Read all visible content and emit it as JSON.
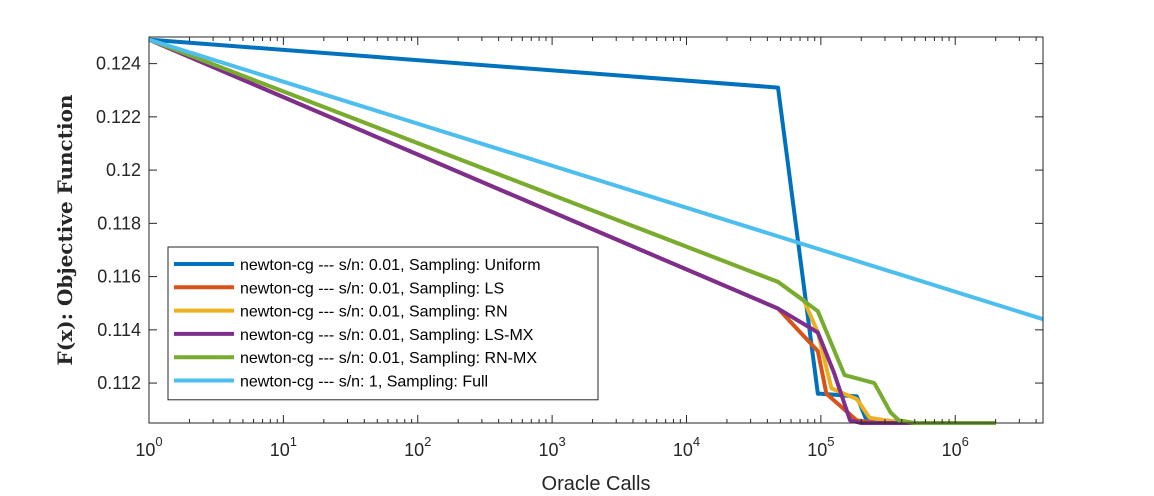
{
  "chart_data": {
    "type": "line",
    "xscale": "log",
    "xlim": [
      1,
      4500000
    ],
    "ylim": [
      0.1105,
      0.125
    ],
    "xlabel": "Oracle Calls",
    "ylabel": "F(x):  Objective Function",
    "x_ticks": [
      {
        "value": 1,
        "base": "10",
        "exp": "0"
      },
      {
        "value": 10,
        "base": "10",
        "exp": "1"
      },
      {
        "value": 100,
        "base": "10",
        "exp": "2"
      },
      {
        "value": 1000,
        "base": "10",
        "exp": "3"
      },
      {
        "value": 10000,
        "base": "10",
        "exp": "4"
      },
      {
        "value": 100000,
        "base": "10",
        "exp": "5"
      },
      {
        "value": 1000000,
        "base": "10",
        "exp": "6"
      }
    ],
    "y_ticks": [
      {
        "value": 0.112,
        "label": "0.112"
      },
      {
        "value": 0.114,
        "label": "0.114"
      },
      {
        "value": 0.116,
        "label": "0.116"
      },
      {
        "value": 0.118,
        "label": "0.118"
      },
      {
        "value": 0.12,
        "label": "0.12"
      },
      {
        "value": 0.122,
        "label": "0.122"
      },
      {
        "value": 0.124,
        "label": "0.124"
      }
    ],
    "legend_position": "bottom-left",
    "series": [
      {
        "name": "newton-cg --- s/n: 0.01, Sampling: Uniform",
        "color": "#0072BD",
        "x": [
          1,
          48000,
          95000,
          100000,
          185000,
          215000,
          290000,
          500000,
          2000000
        ],
        "y": [
          0.1249,
          0.1231,
          0.1116,
          0.1116,
          0.1115,
          0.1107,
          0.1106,
          0.1105,
          0.1105
        ]
      },
      {
        "name": "newton-cg --- s/n: 0.01, Sampling: LS",
        "color": "#D95319",
        "x": [
          1,
          48000,
          95000,
          110000,
          185000,
          260000,
          500000,
          2000000
        ],
        "y": [
          0.1249,
          0.1148,
          0.1132,
          0.1116,
          0.1106,
          0.1105,
          0.1105,
          0.1105
        ]
      },
      {
        "name": "newton-cg --- s/n: 0.01, Sampling: RN",
        "color": "#EDB120",
        "x": [
          1,
          48000,
          75000,
          95000,
          120000,
          185000,
          230000,
          300000,
          500000,
          2000000
        ],
        "y": [
          0.1249,
          0.1158,
          0.1151,
          0.1139,
          0.1118,
          0.1114,
          0.1107,
          0.1106,
          0.1105,
          0.1105
        ]
      },
      {
        "name": "newton-cg --- s/n: 0.01, Sampling: LS-MX",
        "color": "#7E2F8E",
        "x": [
          1,
          48000,
          95000,
          125000,
          165000,
          200000,
          500000,
          2000000
        ],
        "y": [
          0.1249,
          0.1148,
          0.1139,
          0.1124,
          0.1106,
          0.1105,
          0.1105,
          0.1105
        ]
      },
      {
        "name": "newton-cg --- s/n: 0.01, Sampling: RN-MX",
        "color": "#77AC30",
        "x": [
          1,
          48000,
          95000,
          150000,
          250000,
          330000,
          380000,
          500000,
          2000000
        ],
        "y": [
          0.1249,
          0.1158,
          0.1147,
          0.1123,
          0.112,
          0.1109,
          0.1106,
          0.1105,
          0.1105
        ]
      },
      {
        "name": "newton-cg --- s/n: 1, Sampling: Full",
        "color": "#4DBEEE",
        "x": [
          1,
          4500000
        ],
        "y": [
          0.1249,
          0.1144
        ]
      }
    ]
  }
}
